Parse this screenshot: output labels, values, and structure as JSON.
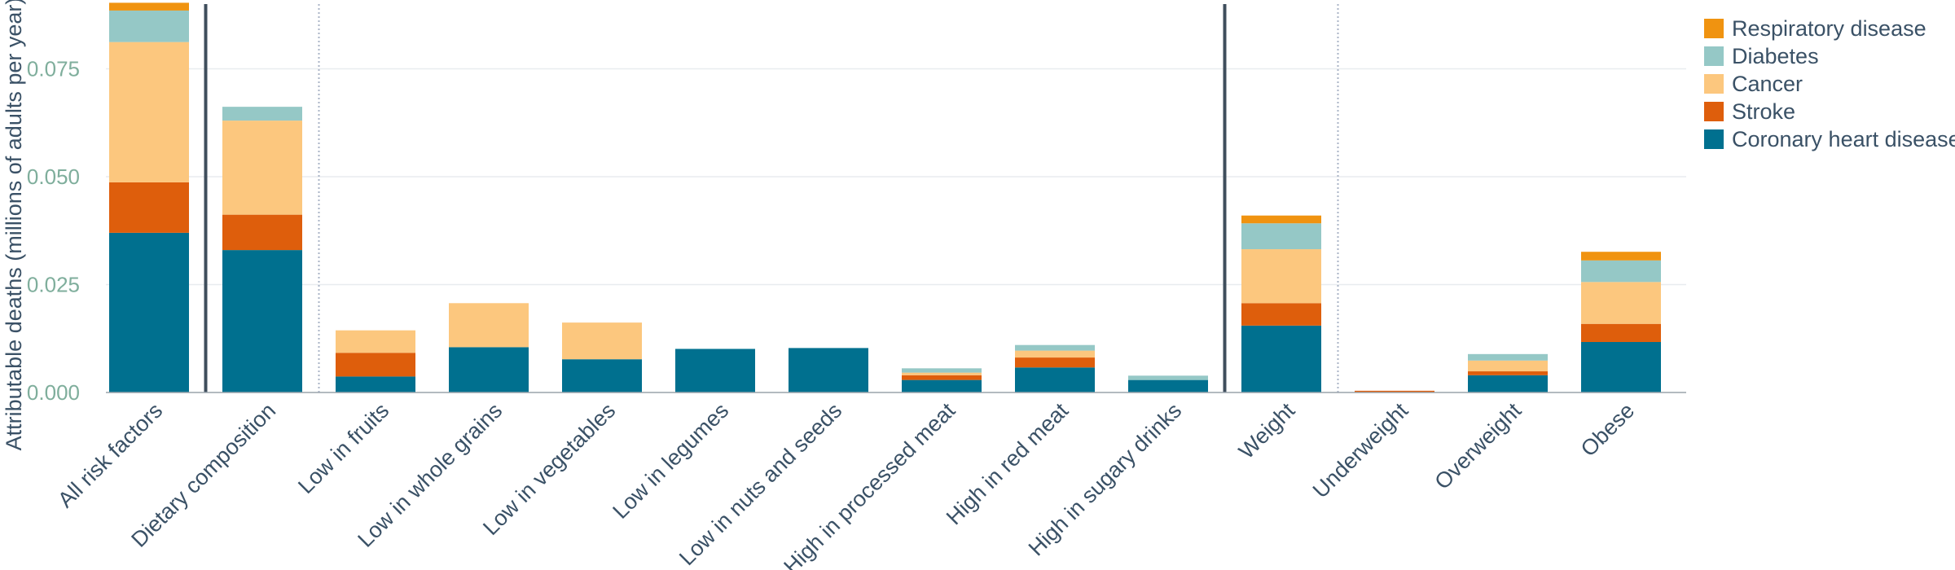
{
  "chart_data": {
    "type": "bar",
    "stacked": true,
    "ylabel": "Attributable deaths (millions of adults per year)",
    "xlabel": "",
    "ylim": [
      0,
      0.09
    ],
    "yticks": [
      0.0,
      0.025,
      0.05,
      0.075
    ],
    "ytick_labels": [
      "0.000",
      "0.025",
      "0.050",
      "0.075"
    ],
    "grid": "horizontal",
    "legend_position": "top-right",
    "categories": [
      "All risk factors",
      "Dietary composition",
      "Low in fruits",
      "Low in whole grains",
      "Low in vegetables",
      "Low in legumes",
      "Low in nuts and seeds",
      "High in processed meat",
      "High in red meat",
      "High in sugary drinks",
      "Weight",
      "Underweight",
      "Overweight",
      "Obese"
    ],
    "series": [
      {
        "name": "Coronary heart disease",
        "color": "#00708f",
        "values": [
          0.037,
          0.033,
          0.0037,
          0.0105,
          0.0077,
          0.0101,
          0.0103,
          0.0029,
          0.0058,
          0.0029,
          0.0155,
          0.0,
          0.004,
          0.0117
        ]
      },
      {
        "name": "Stroke",
        "color": "#de5e0c",
        "values": [
          0.0117,
          0.0082,
          0.0055,
          0.0,
          0.0,
          0.0,
          0.0,
          0.0011,
          0.0023,
          0.0,
          0.0052,
          0.0004,
          0.0009,
          0.0042
        ]
      },
      {
        "name": "Cancer",
        "color": "#fcc77e",
        "values": [
          0.0325,
          0.0218,
          0.0052,
          0.0102,
          0.0085,
          0.0,
          0.0,
          0.0006,
          0.0016,
          0.0,
          0.0125,
          0.0,
          0.0025,
          0.0097
        ]
      },
      {
        "name": "Diabetes",
        "color": "#95c8c6",
        "values": [
          0.0073,
          0.0032,
          0.0,
          0.0,
          0.0,
          0.0,
          0.0,
          0.001,
          0.0013,
          0.001,
          0.006,
          0.0,
          0.0015,
          0.005
        ]
      },
      {
        "name": "Respiratory disease",
        "color": "#f09310",
        "values": [
          0.0018,
          0.0,
          0.0,
          0.0,
          0.0,
          0.0,
          0.0,
          0.0,
          0.0,
          0.0,
          0.0018,
          0.0,
          0.0,
          0.002
        ]
      }
    ],
    "legend_order": [
      "Respiratory disease",
      "Diabetes",
      "Cancer",
      "Stroke",
      "Coronary heart disease"
    ],
    "group_separators_solid_after": [
      "All risk factors",
      "High in sugary drinks"
    ],
    "group_separators_dotted_after": [
      "Dietary composition",
      "Weight"
    ]
  }
}
